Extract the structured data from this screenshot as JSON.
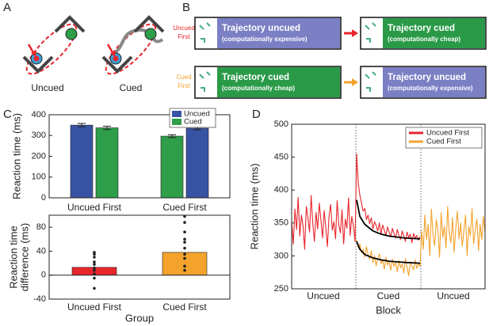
{
  "panels": {
    "A": {
      "label": "A",
      "captions": [
        "Uncued",
        "Cued"
      ]
    },
    "B": {
      "label": "B",
      "rows": [
        {
          "name": [
            "Uncued",
            "First"
          ],
          "color": "#e8262c",
          "boxes": [
            {
              "title": "Trajectory uncued",
              "note": "(computationally expensive)",
              "color": "#7b7fc4"
            },
            {
              "title": "Trajectory cued",
              "note": "(computationally cheap)",
              "color": "#2a9a48"
            }
          ]
        },
        {
          "name": [
            "Cued",
            "First"
          ],
          "color": "#f3a22c",
          "boxes": [
            {
              "title": "Trajectory cued",
              "note": "(computationally cheap)",
              "color": "#2a9a48"
            },
            {
              "title": "Trajectory uncued",
              "note": "(computationally expensive)",
              "color": "#7b7fc4"
            }
          ]
        }
      ]
    },
    "C": {
      "label": "C"
    },
    "D": {
      "label": "D"
    }
  },
  "chart_data": [
    {
      "type": "bar",
      "categories": [
        "Uncued First",
        "Cued First"
      ],
      "series": [
        {
          "name": "Uncued",
          "color": "#3953a4",
          "values": [
            350,
            335
          ],
          "errors": [
            8,
            8
          ]
        },
        {
          "name": "Cued",
          "color": "#2e9e48",
          "values": [
            337,
            297
          ],
          "errors": [
            8,
            7
          ]
        }
      ],
      "ylim": [
        0,
        400
      ],
      "yticks": [
        0,
        100,
        200,
        300,
        400
      ],
      "y_label": "Reaction time (ms)",
      "legend": "upper right"
    },
    {
      "type": "bar_points",
      "categories": [
        "Uncued First",
        "Cued First"
      ],
      "values": [
        13,
        38
      ],
      "colors": [
        "#e8262c",
        "#f3a22c"
      ],
      "points": [
        [
          38,
          35,
          30,
          22,
          18,
          12,
          8,
          2,
          -5,
          -22
        ],
        [
          98,
          88,
          72,
          60,
          55,
          45,
          35,
          28,
          15,
          8
        ]
      ],
      "ylim": [
        -40,
        100
      ],
      "yticks": [
        -40,
        0,
        40,
        80
      ],
      "y_label": [
        "Reaction time",
        "difference (ms)"
      ],
      "x_label": "Group"
    },
    {
      "type": "line",
      "blocks": [
        "Uncued",
        "Cued",
        "Uncued"
      ],
      "x_label": "Block",
      "y_label": "Reaction time (ms)",
      "xlim": [
        0,
        119
      ],
      "ylim": [
        250,
        500
      ],
      "yticks": [
        250,
        300,
        350,
        400,
        450,
        500
      ],
      "legend": "upper right",
      "series": [
        {
          "name": "Uncued First",
          "color": "#e8262c",
          "values": [
            352,
            318,
            371,
            340,
            389,
            330,
            362,
            345,
            310,
            375,
            358,
            336,
            392,
            348,
            322,
            366,
            341,
            380,
            355,
            327,
            369,
            343,
            314,
            361,
            378,
            339,
            352,
            326,
            384,
            347,
            335,
            370,
            318,
            356,
            342,
            388,
            331,
            360,
            345,
            322,
            455,
            410,
            392,
            380,
            368,
            372,
            355,
            362,
            349,
            358,
            341,
            352,
            346,
            338,
            350,
            333,
            347,
            339,
            331,
            344,
            336,
            329,
            342,
            334,
            327,
            340,
            331,
            325,
            338,
            330,
            322,
            336,
            328,
            333,
            320,
            334,
            327,
            331,
            324,
            329,
            null,
            null,
            null,
            null,
            null,
            null,
            null,
            null,
            null,
            null,
            null,
            null,
            null,
            null,
            null,
            null,
            null,
            null,
            null,
            null,
            null,
            null,
            null,
            null,
            null,
            null,
            null,
            null,
            null,
            null,
            null,
            null,
            null,
            null,
            null,
            null,
            null,
            null,
            null,
            null
          ]
        },
        {
          "name": "Cued First",
          "color": "#f3a22c",
          "values": [
            null,
            null,
            null,
            null,
            null,
            null,
            null,
            null,
            null,
            null,
            null,
            null,
            null,
            null,
            null,
            null,
            null,
            null,
            null,
            null,
            null,
            null,
            null,
            null,
            null,
            null,
            null,
            null,
            null,
            null,
            null,
            null,
            null,
            null,
            null,
            null,
            null,
            null,
            null,
            null,
            325,
            312,
            318,
            305,
            310,
            298,
            314,
            302,
            295,
            308,
            290,
            300,
            285,
            296,
            303,
            288,
            294,
            280,
            298,
            286,
            292,
            278,
            295,
            284,
            290,
            276,
            293,
            282,
            288,
            274,
            296,
            283,
            270,
            291,
            285,
            279,
            294,
            281,
            288,
            284,
            338,
            310,
            362,
            325,
            348,
            300,
            371,
            332,
            315,
            355,
            340,
            298,
            366,
            328,
            345,
            312,
            375,
            335,
            320,
            358,
            305,
            342,
            368,
            326,
            350,
            315,
            338,
            362,
            300,
            345,
            330,
            372,
            318,
            340,
            356,
            308,
            348,
            325,
            360,
            335
          ]
        }
      ],
      "fits": [
        {
          "color": "#000000",
          "x": [
            40,
            42,
            45,
            50,
            55,
            60,
            70,
            79
          ],
          "values": [
            385,
            360,
            348,
            338,
            333,
            330,
            327,
            326
          ]
        },
        {
          "color": "#000000",
          "x": [
            40,
            42,
            45,
            50,
            55,
            60,
            70,
            79
          ],
          "values": [
            322,
            310,
            302,
            297,
            294,
            292,
            290,
            289
          ]
        }
      ]
    }
  ]
}
